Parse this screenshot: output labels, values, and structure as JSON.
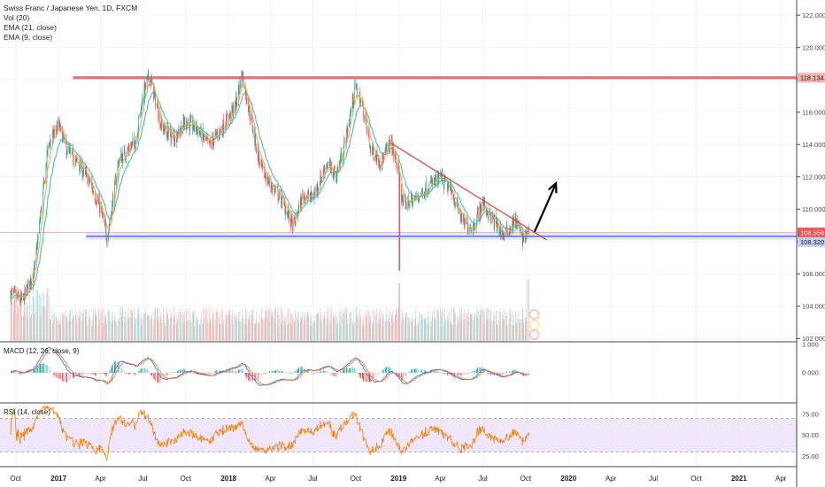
{
  "header": {
    "symbol_line": "Swiss Franc / Japanese Yen, 1D, FXCM",
    "indicators": [
      "Vol (20)",
      "EMA (21, close)",
      "EMA (9, close)"
    ]
  },
  "panes": {
    "macd_label": "MACD (12, 26, close, 9)",
    "rsi_label": "RSI (14, close)"
  },
  "price_axis": {
    "ticks": [
      "122.000",
      "120.000",
      "118.000",
      "116.000",
      "114.000",
      "112.000",
      "110.000",
      "108.000",
      "106.000",
      "104.000",
      "102.000"
    ],
    "resistance_tag": "118.134",
    "last_price_tag": "108.556",
    "support_tag": "108.320"
  },
  "macd_axis": {
    "ticks": [
      "1.000",
      "0.000"
    ]
  },
  "rsi_axis": {
    "ticks": [
      "75.00",
      "50.00",
      "25.00"
    ]
  },
  "time_axis": {
    "labels": [
      "Oct",
      "2017",
      "Apr",
      "Jul",
      "Oct",
      "2018",
      "Apr",
      "Jul",
      "Oct",
      "2019",
      "Apr",
      "Jul",
      "Oct",
      "2020",
      "Apr",
      "Jul",
      "Oct",
      "2021",
      "Apr"
    ]
  },
  "colors": {
    "up": "#26a69a",
    "down": "#ef5350",
    "resistance": "#e57373",
    "support": "#7b8fe8",
    "trendline": "#e53935",
    "ema21": "#2eb8c8",
    "ema9": "#f5a623",
    "rsi_line": "#f57c00",
    "rsi_band": "#e9dcf7",
    "arrow": "#000000"
  },
  "chart_data": {
    "type": "candlestick",
    "symbol": "CHFJPY",
    "timeframe": "1D",
    "x_range": [
      "2016-09",
      "2021-05"
    ],
    "ylim": [
      101.8,
      122.5
    ],
    "key_levels": {
      "resistance": 118.134,
      "support": 108.32,
      "last_price": 108.556
    },
    "trendline": {
      "from": {
        "date": "2018-12",
        "price": 114.1
      },
      "to": {
        "date": "2019-11",
        "price": 108.1
      }
    },
    "projection_arrow": {
      "from": {
        "date": "2019-10",
        "price": 108.6
      },
      "to": {
        "date": "2019-12",
        "price": 111.6
      }
    },
    "price_path": [
      [
        "2016-09-20",
        104.8
      ],
      [
        "2016-10-15",
        104.3
      ],
      [
        "2016-11-10",
        106.2
      ],
      [
        "2016-12-10",
        114.0
      ],
      [
        "2017-01-01",
        115.2
      ],
      [
        "2017-01-20",
        113.6
      ],
      [
        "2017-02-15",
        112.7
      ],
      [
        "2017-03-10",
        111.6
      ],
      [
        "2017-04-01",
        110.0
      ],
      [
        "2017-04-15",
        108.2
      ],
      [
        "2017-05-10",
        113.0
      ],
      [
        "2017-06-15",
        114.2
      ],
      [
        "2017-07-01",
        117.0
      ],
      [
        "2017-07-15",
        118.3
      ],
      [
        "2017-08-10",
        115.1
      ],
      [
        "2017-09-05",
        114.4
      ],
      [
        "2017-10-01",
        115.4
      ],
      [
        "2017-10-25",
        115.0
      ],
      [
        "2017-11-20",
        113.9
      ],
      [
        "2017-12-15",
        114.9
      ],
      [
        "2018-01-15",
        116.3
      ],
      [
        "2018-01-30",
        118.4
      ],
      [
        "2018-02-15",
        116.0
      ],
      [
        "2018-03-10",
        112.6
      ],
      [
        "2018-04-01",
        111.5
      ],
      [
        "2018-04-25",
        110.6
      ],
      [
        "2018-05-20",
        108.9
      ],
      [
        "2018-06-10",
        110.9
      ],
      [
        "2018-07-01",
        110.7
      ],
      [
        "2018-07-30",
        112.8
      ],
      [
        "2018-08-20",
        112.1
      ],
      [
        "2018-09-10",
        114.4
      ],
      [
        "2018-09-30",
        117.6
      ],
      [
        "2018-10-15",
        116.4
      ],
      [
        "2018-11-01",
        113.8
      ],
      [
        "2018-11-25",
        112.9
      ],
      [
        "2018-12-15",
        114.2
      ],
      [
        "2019-01-01",
        112.2
      ],
      [
        "2019-01-10",
        110.3
      ],
      [
        "2019-02-05",
        110.6
      ],
      [
        "2019-03-05",
        111.4
      ],
      [
        "2019-04-01",
        111.9
      ],
      [
        "2019-04-25",
        111.1
      ],
      [
        "2019-05-20",
        109.1
      ],
      [
        "2019-06-10",
        108.9
      ],
      [
        "2019-07-01",
        110.4
      ],
      [
        "2019-07-20",
        109.4
      ],
      [
        "2019-08-15",
        108.4
      ],
      [
        "2019-09-10",
        109.3
      ],
      [
        "2019-09-25",
        108.1
      ],
      [
        "2019-10-08",
        108.556
      ]
    ],
    "series": [
      {
        "name": "EMA (21, close)"
      },
      {
        "name": "EMA (9, close)"
      },
      {
        "name": "Vol (20)"
      },
      {
        "name": "MACD (12, 26, close, 9)"
      },
      {
        "name": "RSI (14, close)"
      }
    ]
  }
}
